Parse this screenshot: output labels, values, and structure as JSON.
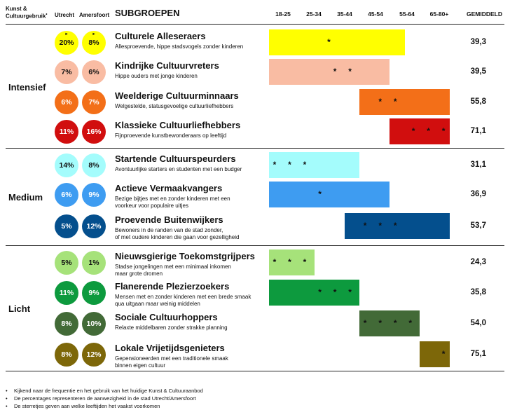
{
  "header": {
    "col1_line1": "Kunst &",
    "col1_line2": "Cultuurgebruik",
    "col1_mark": "•",
    "col2": "Utrecht",
    "col3": "Amersfoort",
    "col4": "SUBGROEPEN",
    "avg": "GEMIDDELD"
  },
  "chart_data": {
    "type": "bar",
    "x_axis": {
      "categories": [
        "18-25",
        "25-34",
        "35-44",
        "45-54",
        "55-64",
        "65-80+"
      ],
      "domain": [
        18,
        80
      ]
    },
    "sections": [
      {
        "label": "Intensief"
      },
      {
        "label": "Medium"
      },
      {
        "label": "Licht"
      }
    ],
    "rows": [
      {
        "section": "Intensief",
        "name": "Culturele Alleseraers",
        "desc": [
          "Allesproevende, hippe stadsvogels zonder kinderen"
        ],
        "utrecht": "20%",
        "amersfoort": "8%",
        "utrecht_marked": true,
        "amersfoort_marked": true,
        "color": "#ffff00",
        "text": "#111111",
        "range": [
          18,
          63
        ],
        "stars": [
          38
        ],
        "stars_text": "*",
        "avg": "39,3"
      },
      {
        "section": "Intensief",
        "name": "Kindrijke Cultuurvreters",
        "desc": [
          "Hippe ouders met jonge kinderen"
        ],
        "utrecht": "7%",
        "amersfoort": "6%",
        "utrecht_marked": false,
        "amersfoort_marked": false,
        "color": "#f9bca3",
        "text": "#111111",
        "range": [
          18,
          58
        ],
        "stars": [
          40,
          45
        ],
        "stars_text": "* *",
        "avg": "39,5"
      },
      {
        "section": "Intensief",
        "name": "Weelderige Cultuurminnaars",
        "desc": [
          "Welgestelde, statusgevoelige cultuurliefhebbers"
        ],
        "utrecht": "6%",
        "amersfoort": "7%",
        "utrecht_marked": false,
        "amersfoort_marked": false,
        "color": "#f36f18",
        "text": "#ffffff",
        "range": [
          48,
          78
        ],
        "stars": [
          55,
          60
        ],
        "stars_text": "* *",
        "avg": "55,8"
      },
      {
        "section": "Intensief",
        "name": "Klassieke Cultuurliefhebbers",
        "desc": [
          "Fijnproevende kunstbewonderaars op leeftijd"
        ],
        "utrecht": "11%",
        "amersfoort": "16%",
        "utrecht_marked": false,
        "amersfoort_marked": false,
        "color": "#d10e0e",
        "text": "#ffffff",
        "range": [
          58,
          78
        ],
        "stars": [
          66,
          71,
          76
        ],
        "stars_text": "* * *",
        "avg": "71,1"
      },
      {
        "section": "Medium",
        "name": "Startende Cultuurspeurders",
        "desc": [
          "Avontuurlijke starters en studenten met een budger"
        ],
        "utrecht": "14%",
        "amersfoort": "8%",
        "utrecht_marked": false,
        "amersfoort_marked": false,
        "color": "#a4fcfc",
        "text": "#111111",
        "range": [
          18,
          48
        ],
        "stars": [
          20,
          25,
          30
        ],
        "stars_text": "* * *",
        "avg": "31,1"
      },
      {
        "section": "Medium",
        "name": "Actieve Vermaakvangers",
        "desc": [
          "Bezige bijtjes met en zonder kinderen met een",
          "voorkeur voor populaire uitjes"
        ],
        "utrecht": "6%",
        "amersfoort": "9%",
        "utrecht_marked": false,
        "amersfoort_marked": false,
        "color": "#3e9cf1",
        "text": "#ffffff",
        "range": [
          18,
          58
        ],
        "stars": [
          35
        ],
        "stars_text": "*",
        "avg": "36,9"
      },
      {
        "section": "Medium",
        "name": "Proevende Buitenwijkers",
        "desc": [
          "Bewoners in de randen van de stad zonder,",
          "of met oudere kinderen die gaan voor gezelligheid"
        ],
        "utrecht": "5%",
        "amersfoort": "12%",
        "utrecht_marked": false,
        "amersfoort_marked": false,
        "color": "#044f8d",
        "text": "#ffffff",
        "range": [
          43,
          78
        ],
        "stars": [
          50,
          55,
          60
        ],
        "stars_text": "* * *",
        "avg": "53,7"
      },
      {
        "section": "Licht",
        "name": "Nieuwsgierige Toekomstgrijpers",
        "desc": [
          "Stadse jongelingen met een minimaal inkomen",
          "maar grote dromen"
        ],
        "utrecht": "5%",
        "amersfoort": "1%",
        "utrecht_marked": false,
        "amersfoort_marked": false,
        "color": "#a6e27a",
        "text": "#111111",
        "range": [
          18,
          33
        ],
        "stars": [
          20,
          25,
          30
        ],
        "stars_text": "* * *",
        "avg": "24,3"
      },
      {
        "section": "Licht",
        "name": "Flanerende Plezierzoekers",
        "desc": [
          "Mensen met en zonder kinderen met een brede smaak",
          "qua uitgaan maar weinig middelen"
        ],
        "utrecht": "11%",
        "amersfoort": "9%",
        "utrecht_marked": false,
        "amersfoort_marked": false,
        "color": "#0d9a3e",
        "text": "#ffffff",
        "range": [
          18,
          48
        ],
        "stars": [
          35,
          40,
          45
        ],
        "stars_text": "* * *",
        "avg": "35,8"
      },
      {
        "section": "Licht",
        "name": "Sociale Cultuurhoppers",
        "desc": [
          "Relaxte middelbaren zonder strakke planning"
        ],
        "utrecht": "8%",
        "amersfoort": "10%",
        "utrecht_marked": false,
        "amersfoort_marked": false,
        "color": "#426a37",
        "text": "#ffffff",
        "range": [
          48,
          68
        ],
        "stars": [
          50,
          55,
          60,
          65
        ],
        "stars_text": "* * * *",
        "avg": "54,0"
      },
      {
        "section": "Licht",
        "name": "Lokale Vrijetijdsgenieters",
        "desc": [
          "Gepensioneerden met een traditionele smaak",
          "binnen eigen cultuur"
        ],
        "utrecht": "8%",
        "amersfoort": "12%",
        "utrecht_marked": false,
        "amersfoort_marked": false,
        "color": "#7d6709",
        "text": "#ffffff",
        "range": [
          68,
          78
        ],
        "stars": [
          76
        ],
        "stars_text": "*",
        "avg": "75,1"
      }
    ]
  },
  "footnotes": [
    {
      "bullet": "•",
      "text": "Kijkend naar de frequentie en het gebruik van het huidige Kunst & Cultuuraanbod"
    },
    {
      "bullet": "•",
      "text": "De percentages representeren de aanwezigheid in de stad Utrecht/Amersfoort"
    },
    {
      "bullet": "•",
      "text": "De sterretjes geven aan welke leeftijden het vaakst voorkomen"
    }
  ]
}
